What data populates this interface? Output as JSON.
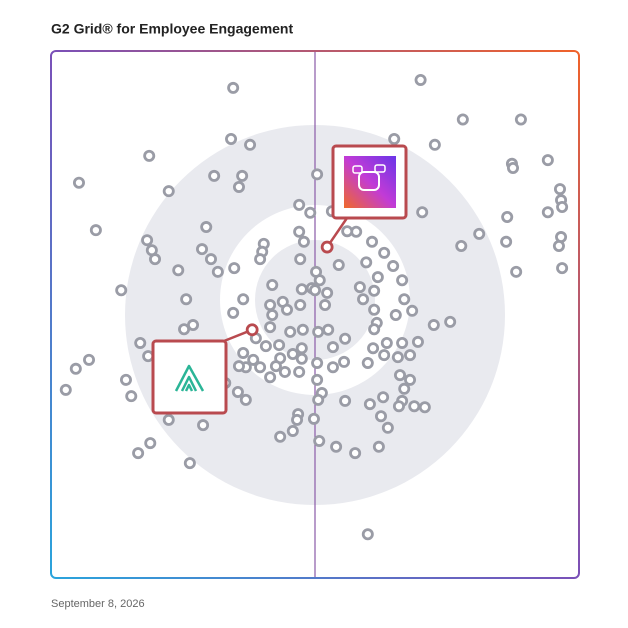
{
  "chart_data": {
    "type": "scatter",
    "title": "G2 Grid® for Employee Engagement",
    "date": "September 8, 2026",
    "xlim": [
      0,
      100
    ],
    "ylim": [
      0,
      100
    ],
    "color": "#9a9ca6",
    "highlight_color": "#b94a4f",
    "x": [
      70,
      34.5,
      78,
      89,
      65,
      72.7,
      34.1,
      37.7,
      18.6,
      87.3,
      94.1,
      87.5,
      5.3,
      22.3,
      30.9,
      36.2,
      35.6,
      50.4,
      47,
      49.1,
      53.2,
      70.3,
      96.4,
      96.6,
      96.8,
      94.1,
      86.4,
      8.5,
      29.4,
      47,
      47.9,
      57.8,
      56.1,
      60.8,
      81.1,
      77.7,
      86.2,
      96.6,
      96.2,
      18.2,
      19.1,
      28.6,
      40.3,
      40,
      39.6,
      47.2,
      54.5,
      59.7,
      63.1,
      64.8,
      19.7,
      30.3,
      24.1,
      31.6,
      34.7,
      50.2,
      50.9,
      49.4,
      61.9,
      66.5,
      88.1,
      96.8,
      13.3,
      41.9,
      47.5,
      58.5,
      61.2,
      25.6,
      36.4,
      43.9,
      41.5,
      44.7,
      47.2,
      50,
      52.3,
      51.9,
      59.1,
      66.9,
      26.9,
      25.2,
      34.5,
      41.9,
      61.2,
      65.3,
      68.4,
      61.7,
      61.2,
      72.5,
      75.6,
      41.5,
      45.3,
      47.7,
      50.6,
      52.5,
      55.7,
      38.8,
      40.7,
      43.2,
      16.9,
      18.4,
      63.6,
      66.5,
      69.5,
      68,
      65.7,
      61,
      47.5,
      53.4,
      36.4,
      36.9,
      38.3,
      39.6,
      43.4,
      45.8,
      47.5,
      50.4,
      53.4,
      55.5,
      60,
      63.1,
      7.2,
      4.7,
      35.6,
      41.5,
      42.6,
      44.3,
      47,
      50.4,
      66.1,
      68,
      66.9,
      14.2,
      15.2,
      2.8,
      33,
      35.4,
      51.3,
      62.9,
      66.5,
      36.9,
      50.6,
      55.7,
      60.4,
      65.9,
      68.8,
      70.8,
      46.8,
      22.3,
      28.8,
      46.6,
      49.8,
      62.5,
      63.8,
      45.8,
      43.4,
      18.8,
      16.5,
      50.8,
      54,
      57.6,
      62.1,
      26.3,
      60
    ],
    "values": [
      94.5,
      93,
      87,
      87,
      83.3,
      82.2,
      83.3,
      82.2,
      80.1,
      78.6,
      79.3,
      77.8,
      75,
      73.4,
      76.3,
      76.3,
      74.2,
      76.6,
      70.8,
      69.3,
      69.6,
      69.4,
      73.8,
      71.7,
      70.4,
      69.4,
      68.5,
      66,
      66.6,
      65.7,
      63.8,
      65.7,
      65.8,
      63.8,
      65.3,
      63,
      63.8,
      64.7,
      63,
      64.1,
      62.2,
      62.4,
      63.4,
      61.9,
      60.5,
      60.5,
      59.4,
      59.9,
      61.7,
      59.2,
      60.5,
      60.5,
      58.4,
      58.1,
      58.8,
      58.1,
      56.5,
      55,
      57.1,
      56.5,
      58.1,
      58.8,
      54.6,
      55.6,
      54.8,
      55.2,
      54.5,
      52.9,
      52.9,
      52.4,
      51.8,
      50.9,
      51.8,
      54.6,
      54.1,
      51.8,
      52.9,
      52.9,
      48,
      47.2,
      50.3,
      49.9,
      50.9,
      49.9,
      50.7,
      48.4,
      47.2,
      48,
      48.6,
      47.6,
      46.7,
      47.1,
      46.7,
      47.1,
      45.4,
      45.5,
      44,
      44.2,
      44.6,
      42.1,
      44.6,
      44.6,
      44.8,
      42.3,
      41.9,
      43.6,
      43.6,
      43.8,
      42.7,
      40,
      41.4,
      40,
      41.7,
      42.5,
      41.6,
      40.8,
      40,
      41,
      40.8,
      42.3,
      41.4,
      39.7,
      40.2,
      38.1,
      40.2,
      39.1,
      39.1,
      37.6,
      38.5,
      37.6,
      35.9,
      37.6,
      34.5,
      35.7,
      37,
      35.3,
      35.1,
      34.3,
      33.6,
      33.8,
      33.8,
      33.6,
      33,
      32.6,
      32.6,
      32.4,
      31.1,
      30,
      29,
      30,
      30.2,
      30.7,
      28.5,
      27.9,
      26.8,
      25.6,
      23.7,
      26,
      24.9,
      23.7,
      24.9,
      21.8,
      8.3
    ],
    "highlight_x": [
      52.3,
      38.1
    ],
    "highlight_values": [
      62.8,
      47.1
    ]
  }
}
